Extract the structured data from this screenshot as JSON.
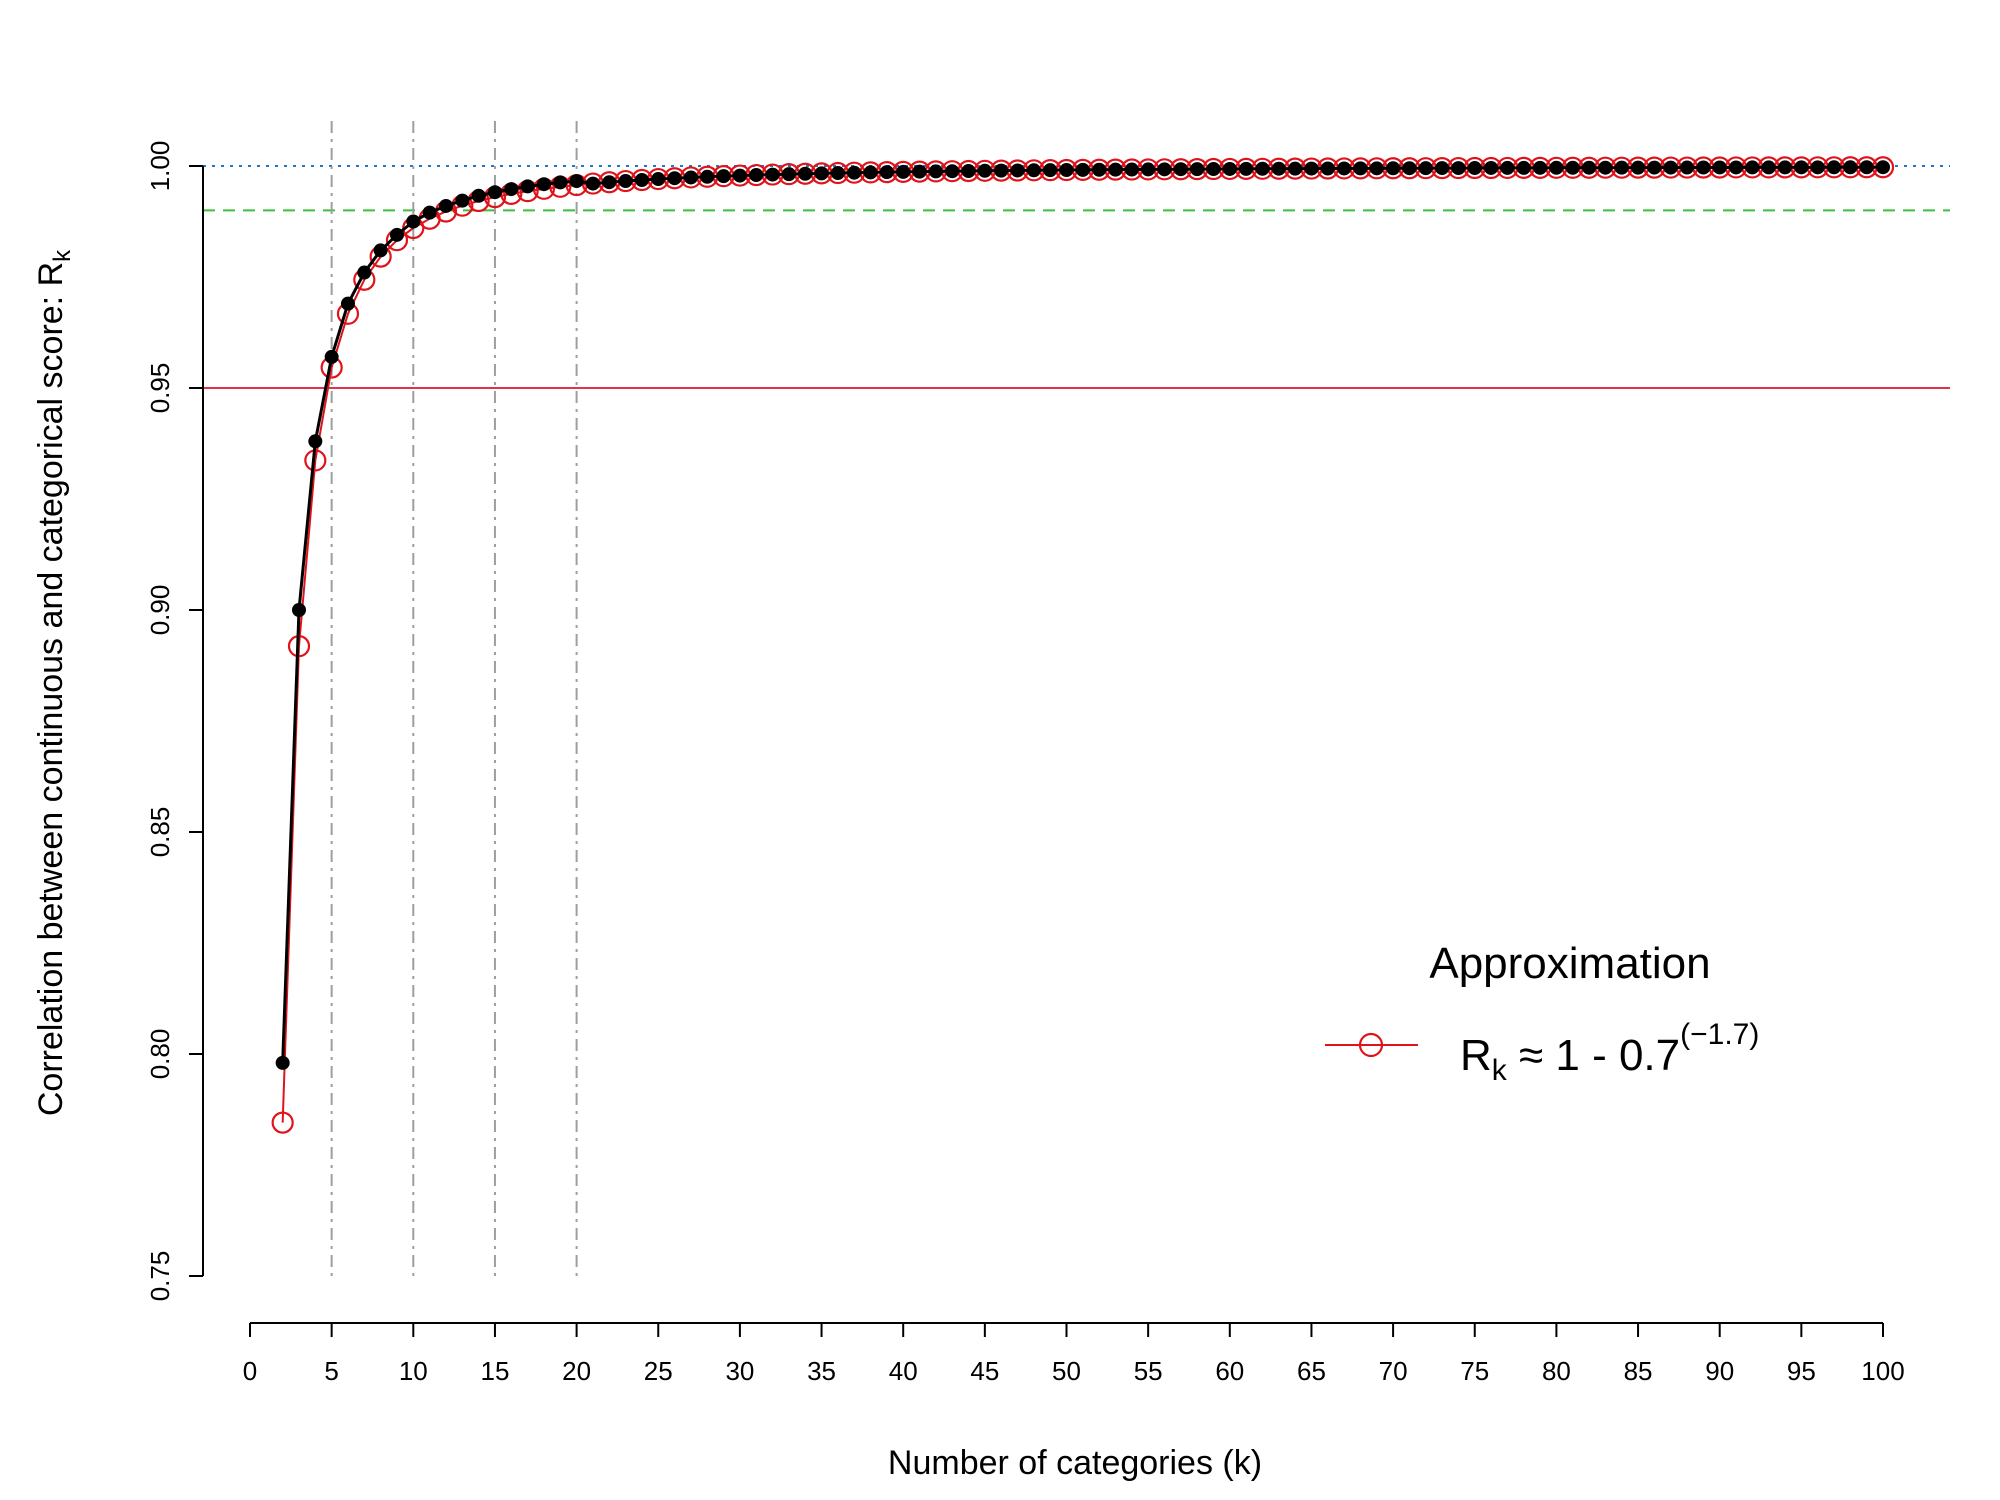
{
  "chart_data": {
    "type": "line",
    "xlabel": "Number of categories (k)",
    "ylabel": {
      "text": "Correlation between continuous and categorical score: R",
      "subscript": "k"
    },
    "xlim": [
      0,
      100
    ],
    "ylim": [
      0.75,
      1.0
    ],
    "x_ticks": [
      0,
      5,
      10,
      15,
      20,
      25,
      30,
      35,
      40,
      45,
      50,
      55,
      60,
      65,
      70,
      75,
      80,
      85,
      90,
      95,
      100
    ],
    "y_ticks": [
      0.75,
      0.8,
      0.85,
      0.9,
      0.95,
      1.0
    ],
    "y_tick_labels": [
      "0.75",
      "0.80",
      "0.85",
      "0.90",
      "0.95",
      "1.00"
    ],
    "grid": false,
    "reference_lines": {
      "horizontal": [
        {
          "y": 1.0,
          "style": "dotted",
          "color": "#1f77d0"
        },
        {
          "y": 0.99,
          "style": "dashed",
          "color": "#3cbf3c"
        },
        {
          "y": 0.95,
          "style": "solid",
          "color": "#e0334d"
        }
      ],
      "vertical": [
        {
          "x": 5,
          "style": "dashdot",
          "color": "#9e9e9e"
        },
        {
          "x": 10,
          "style": "dashdot",
          "color": "#9e9e9e"
        },
        {
          "x": 15,
          "style": "dashdot",
          "color": "#9e9e9e"
        },
        {
          "x": 20,
          "style": "dashdot",
          "color": "#9e9e9e"
        }
      ]
    },
    "series": [
      {
        "role": "exact",
        "marker": "filled-circle",
        "color": "#000000",
        "x_range": [
          2,
          100
        ],
        "values": [
          0.798,
          0.9,
          0.938,
          0.957,
          0.969,
          0.976,
          0.981,
          0.9845,
          0.9875,
          0.9895,
          0.991,
          0.9922,
          0.9933,
          0.9941,
          0.9948,
          0.9954,
          0.9959,
          0.9963,
          0.9966
        ]
      },
      {
        "name_text": "R",
        "name_subscript": "k",
        "name_rest": " ≈ 1 - 0.7",
        "name_superscript": "(−1.7)",
        "role": "approximation",
        "marker": "open-circle",
        "color": "#e0131b",
        "formula": "1 - 0.7 * k^(-1.7)",
        "x_range": [
          2,
          100
        ]
      }
    ],
    "legend": {
      "title": "Approximation",
      "placement": "center-right"
    }
  }
}
